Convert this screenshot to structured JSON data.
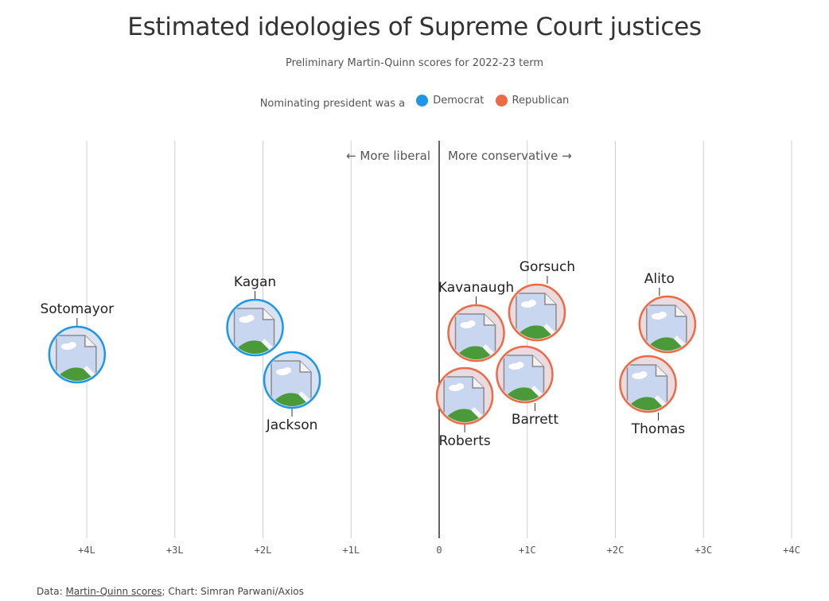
{
  "title": "Estimated ideologies of Supreme Court justices",
  "subtitle": "Preliminary Martin-Quinn scores for 2022-23 term",
  "legend": {
    "title": "Nominating president was a",
    "items": [
      {
        "label": "Democrat",
        "color": "#1e96e8"
      },
      {
        "label": "Republican",
        "color": "#ee6a44"
      }
    ]
  },
  "directions": {
    "liberal": "← More liberal",
    "conservative": "More conservative →"
  },
  "footer": {
    "prefix": "Data: ",
    "link": "Martin-Quinn scores",
    "suffix": "; Chart: Simran Parwani/Axios"
  },
  "chart_data": {
    "type": "scatter",
    "title": "Estimated ideologies of Supreme Court justices",
    "subtitle": "Preliminary Martin-Quinn scores for 2022-23 term",
    "xlabel": "",
    "ylabel": "",
    "xlim": [
      -4.5,
      4
    ],
    "ticks": [
      {
        "value": -4,
        "label": "+4L"
      },
      {
        "value": -3,
        "label": "+3L"
      },
      {
        "value": -2,
        "label": "+2L"
      },
      {
        "value": -1,
        "label": "+1L"
      },
      {
        "value": 0,
        "label": "0"
      },
      {
        "value": 1,
        "label": "+1C"
      },
      {
        "value": 2,
        "label": "+2C"
      },
      {
        "value": 3,
        "label": "+3C"
      },
      {
        "value": 4,
        "label": "+4C"
      }
    ],
    "grid": true,
    "legend_position": "top-center",
    "series": [
      {
        "name": "Democrat",
        "color": "#1e96e8",
        "points": [
          {
            "name": "Sotomayor",
            "x": -4.11
          },
          {
            "name": "Kagan",
            "x": -2.09
          },
          {
            "name": "Jackson",
            "x": -1.67
          }
        ]
      },
      {
        "name": "Republican",
        "color": "#ee6a44",
        "points": [
          {
            "name": "Kavanaugh",
            "x": 0.42
          },
          {
            "name": "Roberts",
            "x": 0.29
          },
          {
            "name": "Gorsuch",
            "x": 1.11
          },
          {
            "name": "Barrett",
            "x": 0.97
          },
          {
            "name": "Alito",
            "x": 2.59
          },
          {
            "name": "Thomas",
            "x": 2.37
          }
        ]
      }
    ]
  }
}
